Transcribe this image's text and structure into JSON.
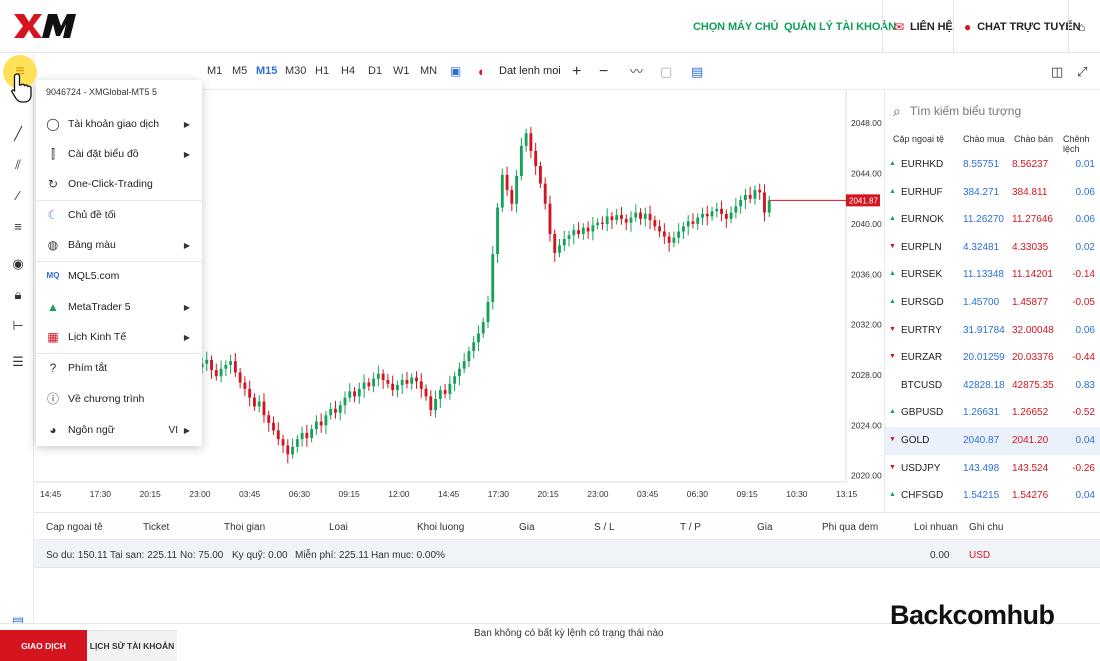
{
  "app": {
    "logo_text": "XM"
  },
  "topnav": {
    "choose_server": "CHỌN MÁY CHỦ",
    "manage_account": "QUẢN LÝ TÀI KHOẢN",
    "contact": "LIÊN HỆ",
    "live_chat": "CHAT TRỰC TUYẾN"
  },
  "toolbar": {
    "timeframes": [
      "M1",
      "M5",
      "M15",
      "M30",
      "H1",
      "H4",
      "D1",
      "W1",
      "MN"
    ],
    "active_timeframe": "M15",
    "order_label": "Dat lenh moi"
  },
  "menu": {
    "account": "9046724 - XMGlobal-MT5 5",
    "items": {
      "trading_account": "Tài khoản giao dịch",
      "chart_settings": "Cài đặt biểu đồ",
      "one_click": "One-Click-Trading",
      "dark_theme": "Chủ đề tối",
      "color_scheme": "Bảng màu",
      "mql5": "MQL5.com",
      "metatrader": "MetaTrader 5",
      "economic_calendar": "Lịch Kinh Tế",
      "shortcuts": "Phím tắt",
      "about": "Về chương trình",
      "language": "Ngôn ngữ",
      "language_value": "VI"
    }
  },
  "chart_data": {
    "type": "candlestick",
    "symbol": "GOLD",
    "current_price": "2041.87",
    "y_ticks": [
      "2048.00",
      "2044.00",
      "2040.00",
      "2036.00",
      "2032.00",
      "2028.00",
      "2024.00",
      "2020.00"
    ],
    "ylim": [
      2019.5,
      2050.0
    ],
    "x_ticks": [
      "14:45",
      "17:30",
      "20:15",
      "23:00",
      "03:45",
      "06:30",
      "09:15",
      "12:00",
      "14:45",
      "17:30",
      "20:15",
      "23:00",
      "03:45",
      "06:30",
      "09:15",
      "10:30",
      "13:15"
    ],
    "closes": [
      2028.6,
      2028.9,
      2029.2,
      2028.4,
      2027.9,
      2028.5,
      2028.8,
      2029.1,
      2028.2,
      2027.4,
      2026.9,
      2026.2,
      2025.5,
      2025.9,
      2024.8,
      2024.2,
      2023.6,
      2022.9,
      2022.4,
      2021.7,
      2022.3,
      2022.9,
      2023.4,
      2023.0,
      2023.7,
      2024.3,
      2024.0,
      2024.8,
      2025.3,
      2025.0,
      2025.6,
      2026.2,
      2026.7,
      2026.3,
      2026.9,
      2027.4,
      2027.1,
      2027.7,
      2028.1,
      2027.6,
      2027.3,
      2026.8,
      2027.2,
      2027.6,
      2027.3,
      2027.8,
      2027.5,
      2026.9,
      2026.3,
      2025.2,
      2026.1,
      2026.8,
      2026.5,
      2027.3,
      2027.9,
      2028.5,
      2029.1,
      2029.9,
      2030.6,
      2031.3,
      2032.2,
      2033.8,
      2037.6,
      2041.3,
      2043.9,
      2042.7,
      2041.6,
      2043.8,
      2046.2,
      2047.2,
      2045.8,
      2044.6,
      2043.2,
      2041.6,
      2039.2,
      2037.7,
      2038.3,
      2038.8,
      2039.1,
      2039.5,
      2039.2,
      2039.7,
      2039.4,
      2039.9,
      2040.1,
      2040.0,
      2040.6,
      2040.3,
      2040.7,
      2040.4,
      2040.1,
      2040.5,
      2040.9,
      2040.4,
      2040.8,
      2040.3,
      2039.8,
      2039.4,
      2039.0,
      2038.5,
      2038.9,
      2039.4,
      2039.8,
      2040.2,
      2040.0,
      2040.5,
      2040.8,
      2040.6,
      2041.0,
      2041.2,
      2040.8,
      2040.4,
      2040.9,
      2041.4,
      2041.9,
      2042.3,
      2042.0,
      2042.7,
      2042.5,
      2040.9,
      2041.87
    ]
  },
  "watchlist": {
    "search_placeholder": "Tìm kiếm biểu tượng",
    "headers": [
      "Cặp ngoại tệ",
      "Chào mua",
      "Chào bán",
      "Chênh lệch"
    ],
    "rows": [
      {
        "dir": "up",
        "symbol": "EURHKD",
        "bid": "8.55751",
        "ask": "8.56237",
        "change": "0.01"
      },
      {
        "dir": "up",
        "symbol": "EURHUF",
        "bid": "384.271",
        "ask": "384.811",
        "change": "0.06"
      },
      {
        "dir": "up",
        "symbol": "EURNOK",
        "bid": "11.26270",
        "ask": "11.27646",
        "change": "0.06"
      },
      {
        "dir": "down",
        "symbol": "EURPLN",
        "bid": "4.32481",
        "ask": "4.33035",
        "change": "0.02"
      },
      {
        "dir": "up",
        "symbol": "EURSEK",
        "bid": "11.13348",
        "ask": "11.14201",
        "change": "-0.14"
      },
      {
        "dir": "up",
        "symbol": "EURSGD",
        "bid": "1.45700",
        "ask": "1.45877",
        "change": "-0.05"
      },
      {
        "dir": "down",
        "symbol": "EURTRY",
        "bid": "31.91784",
        "ask": "32.00048",
        "change": "0.06"
      },
      {
        "dir": "down",
        "symbol": "EURZAR",
        "bid": "20.01259",
        "ask": "20.03376",
        "change": "-0.44"
      },
      {
        "dir": "none",
        "symbol": "BTCUSD",
        "bid": "42828.18",
        "ask": "42875.35",
        "change": "0.83"
      },
      {
        "dir": "up",
        "symbol": "GBPUSD",
        "bid": "1.26631",
        "ask": "1.26652",
        "change": "-0.52"
      },
      {
        "dir": "down",
        "symbol": "GOLD",
        "bid": "2040.87",
        "ask": "2041.20",
        "change": "0.04"
      },
      {
        "dir": "down",
        "symbol": "USDJPY",
        "bid": "143.498",
        "ask": "143.524",
        "change": "-0.26"
      },
      {
        "dir": "up",
        "symbol": "CHFSGD",
        "bid": "1.54215",
        "ask": "1.54276",
        "change": "0.04"
      }
    ]
  },
  "trade_table": {
    "headers": [
      "Cap ngoai tê",
      "Ticket",
      "Thoi gian",
      "Loai",
      "Khoi luong",
      "Gia",
      "S / L",
      "T / P",
      "Gia",
      "Phi qua dem",
      "Loi nhuan",
      "Ghi chu"
    ]
  },
  "balance": {
    "balance": "So du: 150.11",
    "equity": "Tai san: 225.11",
    "credit": "No: 75.00",
    "margin": "Ky quỹ: 0.00",
    "free_margin": "Miễn phí: 225.11",
    "margin_level": "Han muc: 0.00%",
    "profit": "0.00",
    "currency": "USD"
  },
  "bottom": {
    "tab_trading": "GIAO DỊCH",
    "tab_history": "LỊCH SỬ TÀI KHOẢN",
    "empty_message": "Ban không có bất kỳ lệnh có trạng thái nào",
    "watermark": "Backcomhub"
  },
  "colors": {
    "brand_red": "#d4141e",
    "up_green": "#15a35c",
    "down_red": "#d4141e",
    "accent_blue": "#2b6fd6",
    "nav_green": "#0f9f58"
  }
}
